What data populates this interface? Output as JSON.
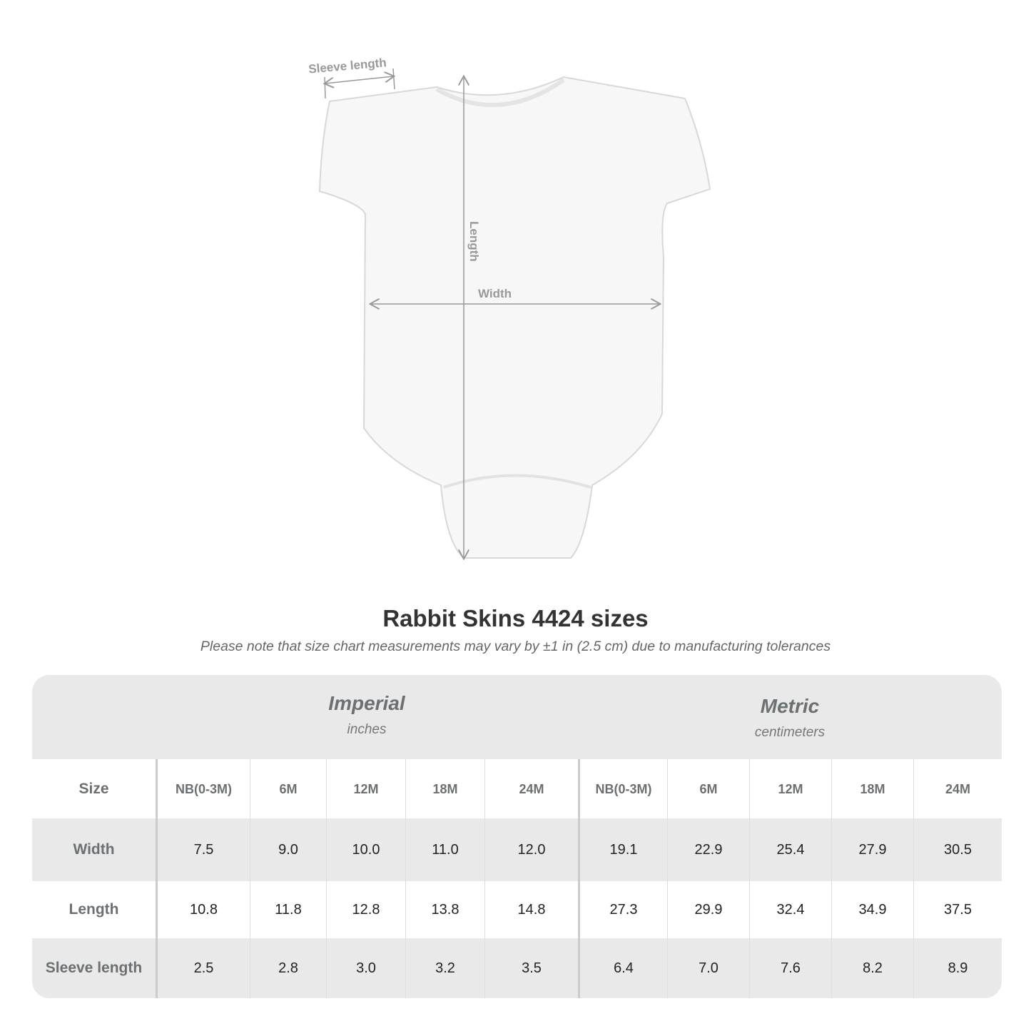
{
  "diagram": {
    "sleeve_label": "Sleeve length",
    "length_label": "Length",
    "width_label": "Width"
  },
  "title": "Rabbit Skins 4424 sizes",
  "subtitle": "Please note that size chart measurements may vary by ±1 in (2.5 cm) due to manufacturing tolerances",
  "table": {
    "imperial": {
      "name": "Imperial",
      "unit": "inches"
    },
    "metric": {
      "name": "Metric",
      "unit": "centimeters"
    },
    "size_label": "Size",
    "sizes": [
      [
        "NB",
        "(0-3M)"
      ],
      [
        "6M"
      ],
      [
        "12M"
      ],
      [
        "18M"
      ],
      [
        "24M"
      ],
      [
        "NB",
        "(0-3M)"
      ],
      [
        "6M"
      ],
      [
        "12M"
      ],
      [
        "18M"
      ],
      [
        "24M"
      ]
    ],
    "rows": [
      {
        "label": "Width",
        "values": [
          "7.5",
          "9.0",
          "10.0",
          "11.0",
          "12.0",
          "19.1",
          "22.9",
          "25.4",
          "27.9",
          "30.5"
        ]
      },
      {
        "label": "Length",
        "values": [
          "10.8",
          "11.8",
          "12.8",
          "13.8",
          "14.8",
          "27.3",
          "29.9",
          "32.4",
          "34.9",
          "37.5"
        ]
      },
      {
        "label": "Sleeve length",
        "values": [
          "2.5",
          "2.8",
          "3.0",
          "3.2",
          "3.5",
          "6.4",
          "7.0",
          "7.6",
          "8.2",
          "8.9"
        ]
      }
    ]
  }
}
